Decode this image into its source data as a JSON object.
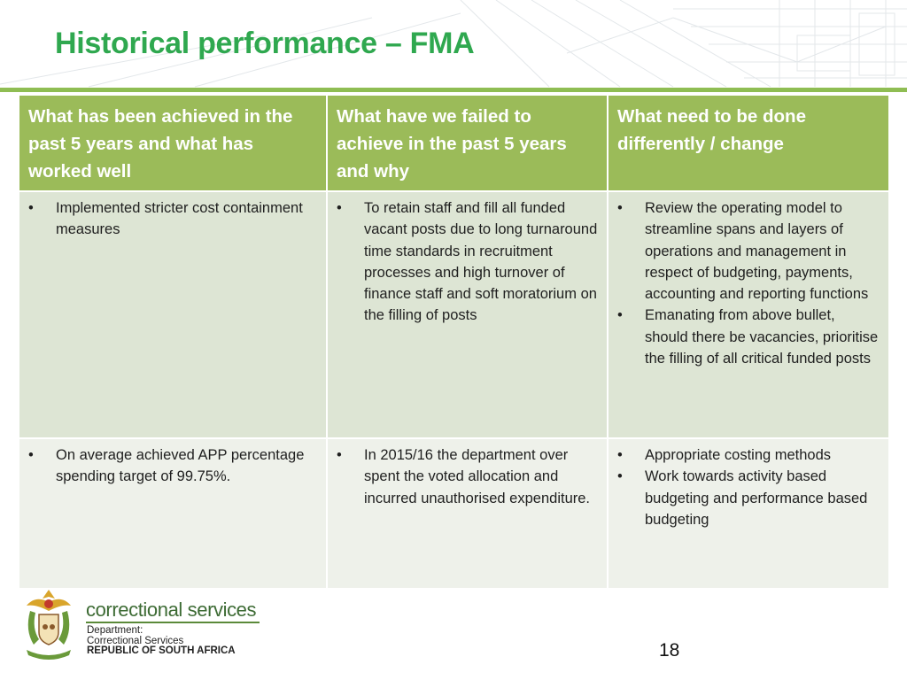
{
  "slide": {
    "title": "Historical performance – FMA",
    "page_number": "18"
  },
  "table": {
    "headers": [
      "What has been achieved in the past 5 years and what has worked well",
      "What have we failed to achieve in the past 5 years and why",
      "What need to be done differently / change"
    ],
    "rows": [
      {
        "col1": [
          "Implemented stricter cost containment measures"
        ],
        "col2": [
          "To retain staff and fill all funded vacant posts due to long turnaround time standards in recruitment processes and high turnover of finance staff and soft moratorium on the filling of posts"
        ],
        "col3": [
          "Review the operating model to streamline spans and layers of operations and management in respect of budgeting, payments, accounting and reporting functions",
          "Emanating from above bullet, should there be vacancies, prioritise the filling of all critical funded posts"
        ]
      },
      {
        "col1": [
          "On average achieved APP percentage spending target of 99.75%."
        ],
        "col2": [
          "In 2015/16 the department over spent the voted allocation and incurred unauthorised expenditure."
        ],
        "col3": [
          "Appropriate costing methods",
          "Work towards activity based budgeting and performance based budgeting"
        ]
      }
    ]
  },
  "footer": {
    "brand": "correctional services",
    "line1": "Department:",
    "line2": "Correctional Services",
    "line3": "REPUBLIC OF SOUTH AFRICA"
  },
  "colors": {
    "title": "#2fa84f",
    "header_bg": "#9bbb59",
    "row1_bg": "#dde5d4",
    "row2_bg": "#eef1ea",
    "rule": "#8fbd53"
  },
  "icons": {
    "logo": "coat-of-arms-icon"
  }
}
